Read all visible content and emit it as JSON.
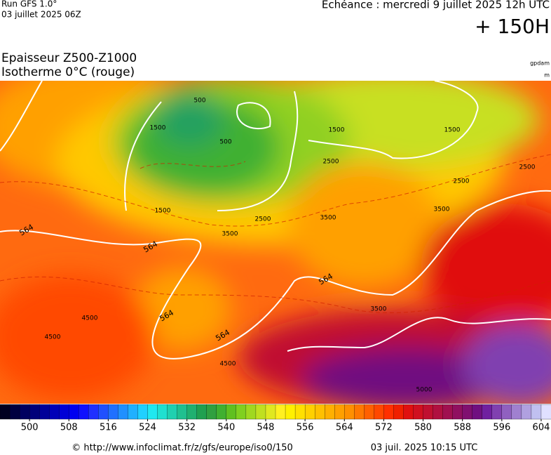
{
  "header": {
    "run": "Run GFS 1.0°",
    "run_date": "03 juillet 2025 06Z",
    "valid": "Echéance : mercredi 9 juillet 2025 12h UTC",
    "lead": "+ 150H",
    "title_1": "Epaisseur Z500-Z1000",
    "title_2": "Isotherme 0°C (rouge)",
    "unit_1": "gpdam",
    "unit_2": "m"
  },
  "map": {
    "contour_labels": [
      "564",
      "564",
      "564",
      "564",
      "564",
      "1500",
      "1500",
      "1500",
      "1500",
      "2500",
      "2500",
      "2500",
      "2500",
      "3500",
      "3500",
      "3500",
      "3500",
      "4500",
      "4500",
      "4500",
      "500",
      "500",
      "5000"
    ]
  },
  "colorbar": {
    "lim": [
      494,
      606
    ],
    "ticks": [
      500,
      508,
      516,
      524,
      532,
      540,
      548,
      556,
      564,
      572,
      580,
      588,
      596,
      604
    ],
    "colors": [
      "#000020",
      "#000040",
      "#000060",
      "#00007a",
      "#000099",
      "#0000b8",
      "#0000d6",
      "#0000f0",
      "#1010ff",
      "#2030ff",
      "#2050ff",
      "#2070ff",
      "#2090ff",
      "#20b0ff",
      "#20d0ff",
      "#20e8f0",
      "#20e0d0",
      "#20d0b0",
      "#20c090",
      "#20b070",
      "#20a050",
      "#30a040",
      "#40b030",
      "#60c020",
      "#80d020",
      "#a0d820",
      "#c0e020",
      "#e0e820",
      "#fff020",
      "#fff000",
      "#ffe000",
      "#ffd000",
      "#ffc000",
      "#ffb000",
      "#ffa000",
      "#ff9000",
      "#ff7800",
      "#ff6000",
      "#ff4800",
      "#ff3000",
      "#f02000",
      "#e01010",
      "#d01020",
      "#c01030",
      "#b01040",
      "#a01050",
      "#901060",
      "#801070",
      "#701080",
      "#7020a0",
      "#8040b0",
      "#9060c0",
      "#a080d0",
      "#b0a0e0",
      "#c0c0f0",
      "#e0e0ff"
    ]
  },
  "footer": {
    "source": "© http://www.infoclimat.fr/z/gfs/europe/iso0/150",
    "generated": "03 juil. 2025 10:15 UTC"
  }
}
